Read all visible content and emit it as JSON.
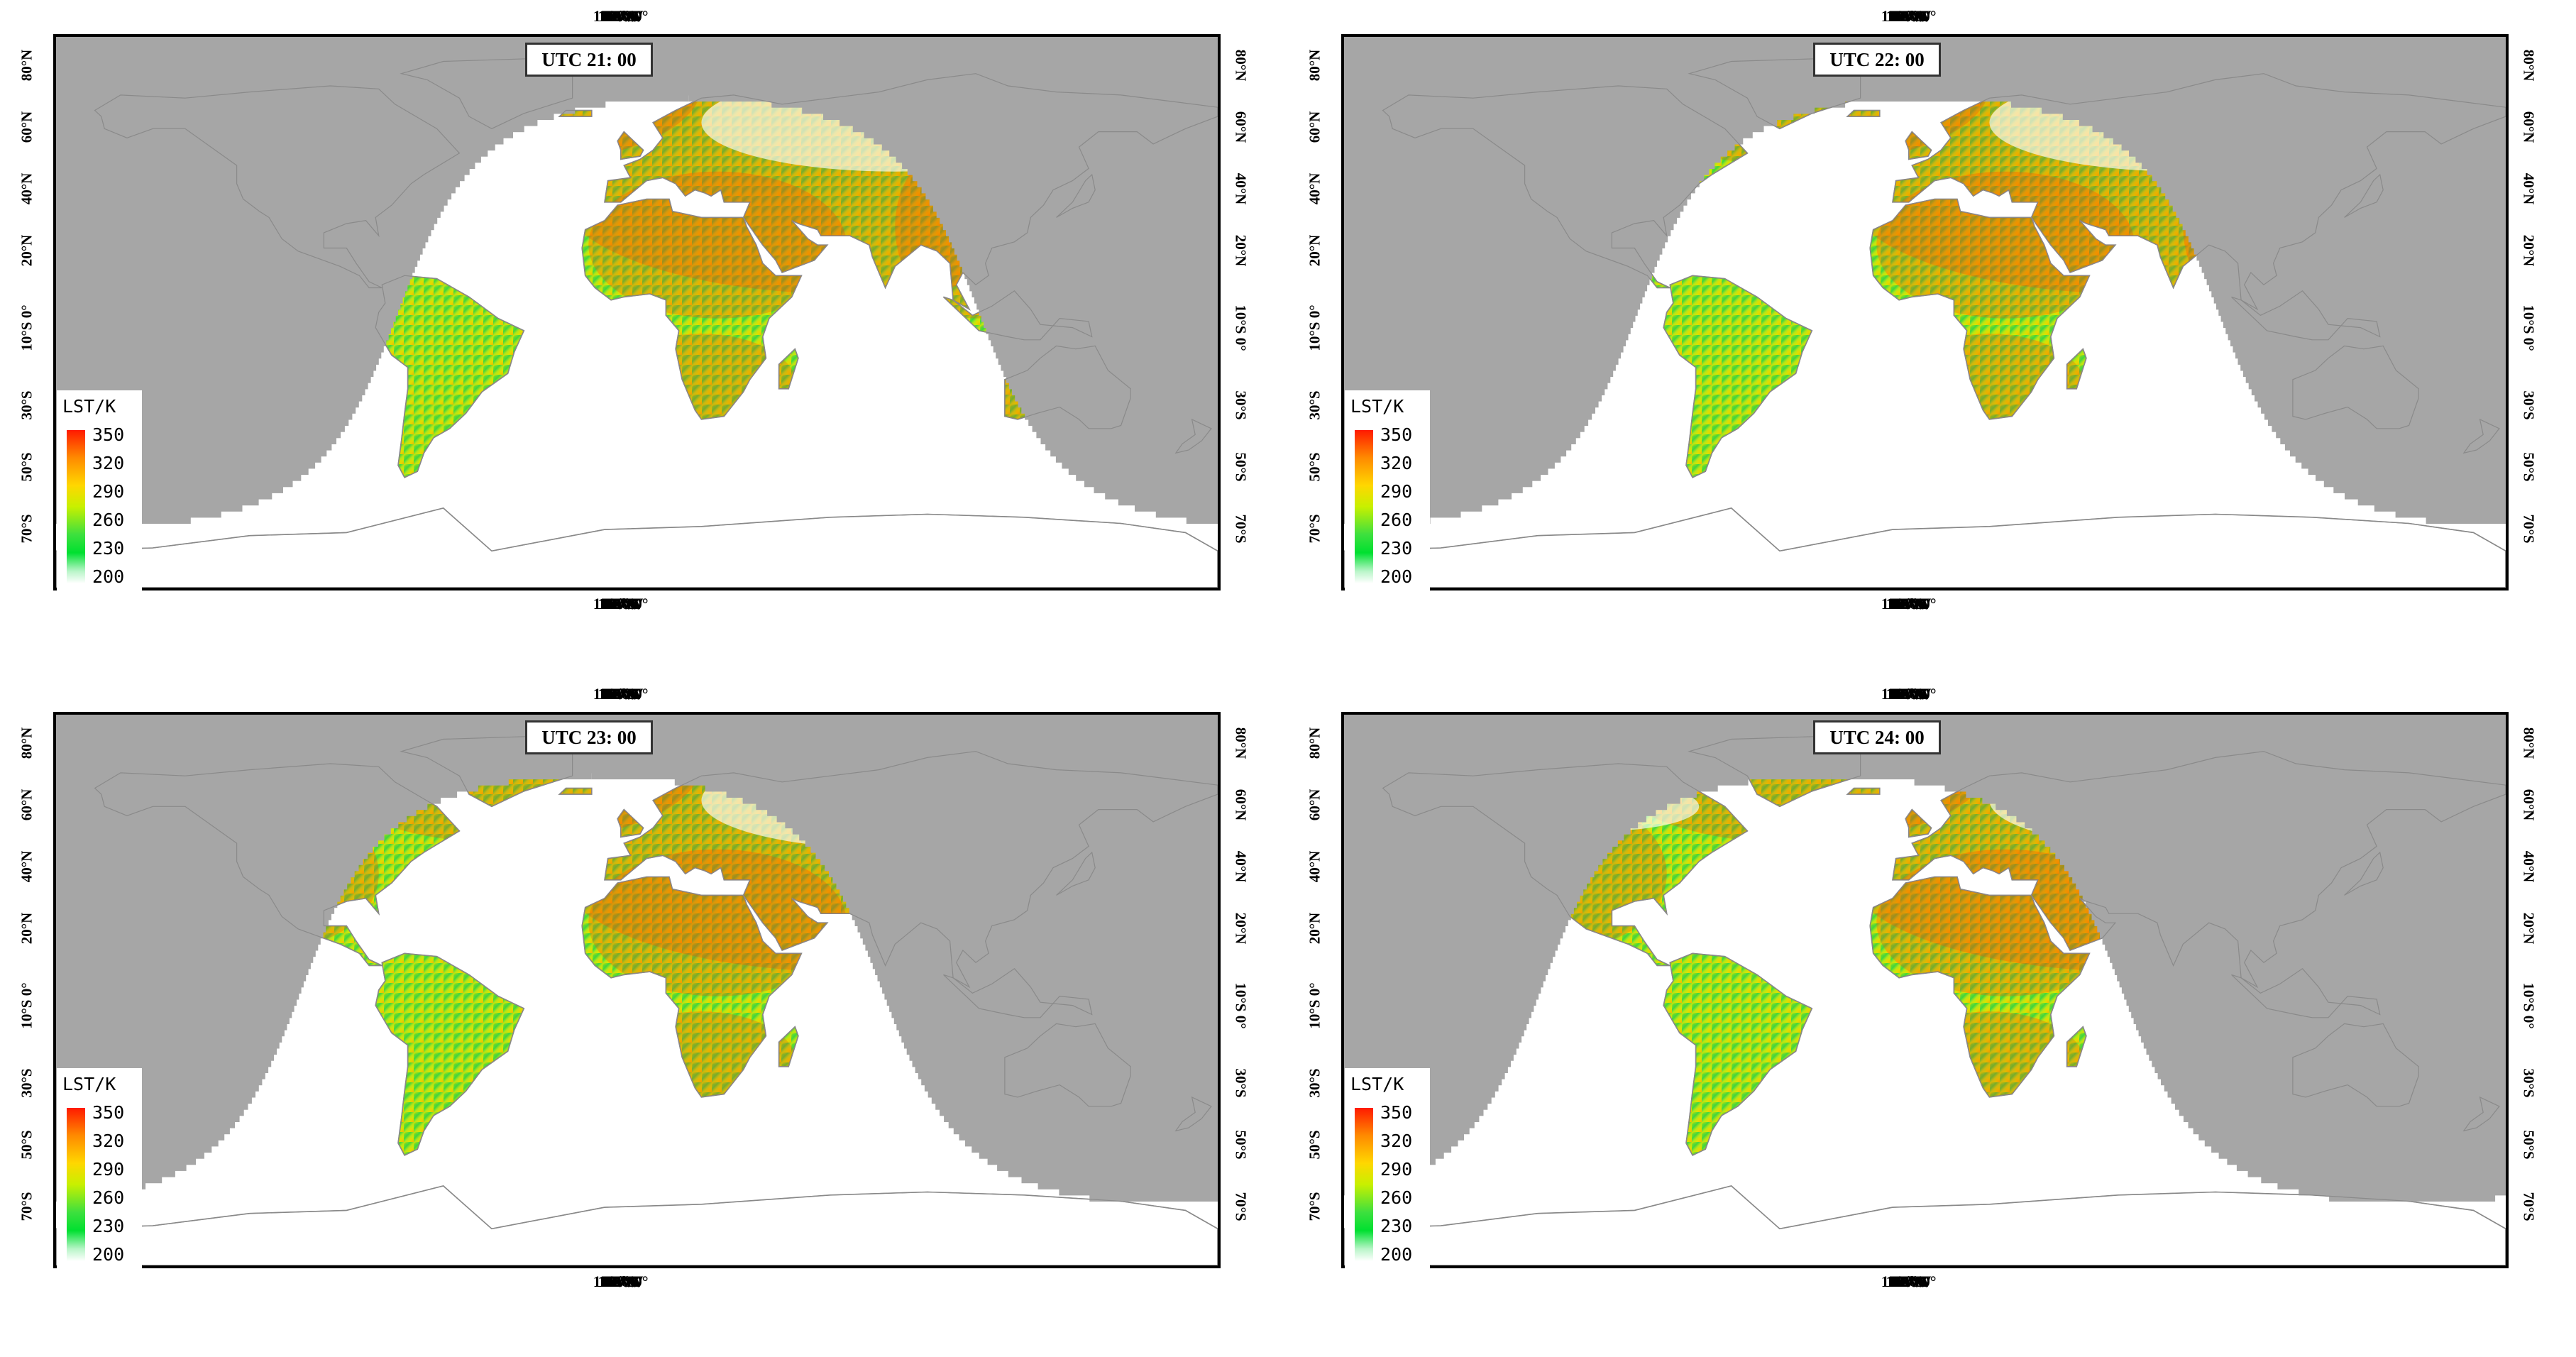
{
  "panels": [
    {
      "label": "UTC 21: 00",
      "terminator_lon": -74
    },
    {
      "label": "UTC 22: 00",
      "terminator_lon": -89
    },
    {
      "label": "UTC 23: 00",
      "terminator_lon": -104
    },
    {
      "label": "UTC 24: 00",
      "terminator_lon": -119
    }
  ],
  "lon_labels": [
    "170°W",
    "150°W",
    "130°W",
    "110°W",
    "90°W",
    "70°W",
    "50°W",
    "30°W",
    "10°W 0°",
    "20°E",
    "40°E",
    "60°E",
    "80°E",
    "100°E",
    "120°E",
    "140°E",
    "160°E",
    "180°"
  ],
  "lon_values": [
    -170,
    -150,
    -130,
    -110,
    -90,
    -70,
    -50,
    -30,
    -10,
    20,
    40,
    60,
    80,
    100,
    120,
    140,
    160,
    180
  ],
  "lat_labels": [
    "80°N",
    "60°N",
    "40°N",
    "20°N",
    "10°S 0°",
    "30°S",
    "50°S",
    "70°S"
  ],
  "lat_values": [
    80,
    60,
    40,
    20,
    0,
    -30,
    -50,
    -70
  ],
  "legend": {
    "title": "LST/K",
    "ticks": [
      "350",
      "320",
      "290",
      "260",
      "230",
      "200"
    ]
  },
  "colors": {
    "night_gray": "#a6a6a6",
    "border_line": "#7a7a7a",
    "warm": "#ff4400",
    "mid": "#d7e600",
    "cool": "#3fd63f",
    "gap": "#ffffff"
  }
}
